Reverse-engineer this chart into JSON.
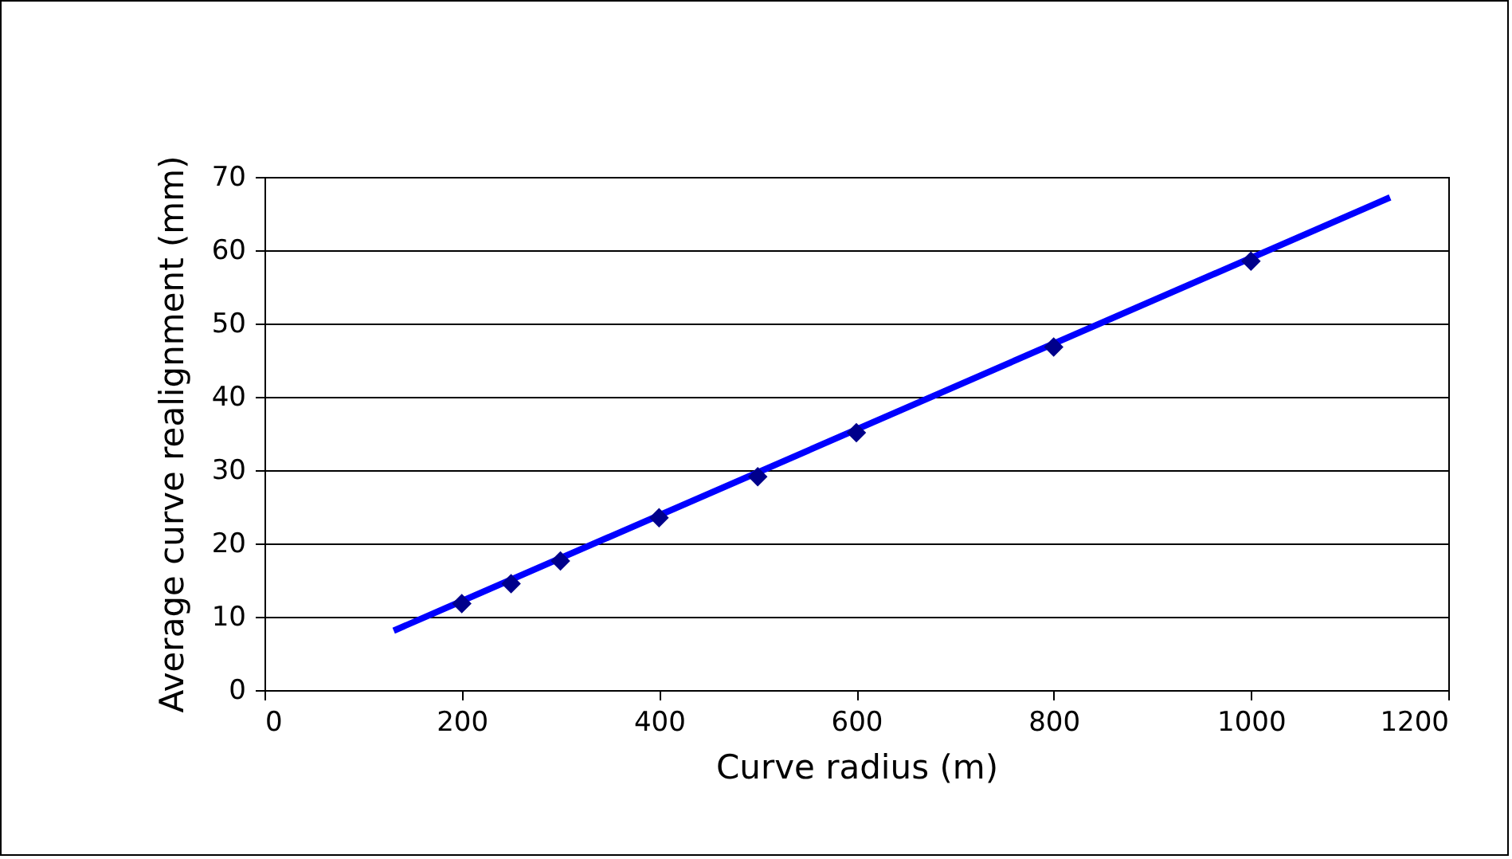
{
  "chart_data": {
    "type": "scatter",
    "xlabel": "Curve radius (m)",
    "ylabel": "Average curve realignment (mm)",
    "x": [
      200,
      250,
      300,
      400,
      500,
      600,
      800,
      1000
    ],
    "series": [
      {
        "color": "#00008b",
        "marker": "diamond",
        "values": [
          11.8,
          14.5,
          17.6,
          23.5,
          29.1,
          35.1,
          46.8,
          58.5
        ]
      },
      {
        "type": "line",
        "color": "#0000ff",
        "x": [
          131,
          1141
        ],
        "values": [
          8.1,
          67.2
        ],
        "marker": "none",
        "line_style": "solid"
      }
    ],
    "xlim": [
      0,
      1200
    ],
    "xticks": [
      0,
      200,
      400,
      600,
      800,
      1000,
      1200
    ],
    "ylim": [
      0,
      70
    ],
    "yticks": [
      0,
      10,
      20,
      30,
      40,
      50,
      60,
      70
    ],
    "grid": "y"
  }
}
